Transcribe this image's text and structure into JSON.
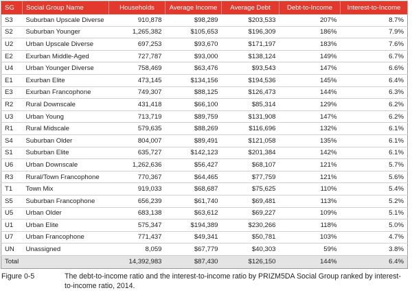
{
  "table": {
    "header": [
      "SG",
      "Social Group Name",
      "Households",
      "Average Income",
      "Average Debt",
      "Debt-to-Income",
      "Interest-to-Income"
    ],
    "rows": [
      [
        "S3",
        "Suburban Upscale Diverse",
        "910,878",
        "$98,289",
        "$203,533",
        "207%",
        "8.7%"
      ],
      [
        "S2",
        "Suburban Younger",
        "1,265,382",
        "$105,653",
        "$196,309",
        "186%",
        "7.9%"
      ],
      [
        "U2",
        "Urban Upscale Diverse",
        "697,253",
        "$93,670",
        "$171,197",
        "183%",
        "7.6%"
      ],
      [
        "E2",
        "Exurban Middle-Aged",
        "727,787",
        "$93,000",
        "$138,124",
        "149%",
        "6.7%"
      ],
      [
        "U4",
        "Urban Younger Diverse",
        "758,469",
        "$63,476",
        "$93,543",
        "147%",
        "6.6%"
      ],
      [
        "E1",
        "Exurban Elite",
        "473,145",
        "$134,156",
        "$194,536",
        "145%",
        "6.4%"
      ],
      [
        "E3",
        "Exurban Francophone",
        "749,307",
        "$88,125",
        "$126,473",
        "144%",
        "6.3%"
      ],
      [
        "R2",
        "Rural Downscale",
        "431,418",
        "$66,100",
        "$85,314",
        "129%",
        "6.2%"
      ],
      [
        "U3",
        "Urban Young",
        "713,719",
        "$89,759",
        "$131,908",
        "147%",
        "6.2%"
      ],
      [
        "R1",
        "Rural Midscale",
        "579,635",
        "$88,269",
        "$116,696",
        "132%",
        "6.1%"
      ],
      [
        "S4",
        "Suburban Older",
        "804,007",
        "$89,491",
        "$121,058",
        "135%",
        "6.1%"
      ],
      [
        "S1",
        "Suburban Elite",
        "635,727",
        "$142,123",
        "$201,384",
        "142%",
        "6.1%"
      ],
      [
        "U6",
        "Urban Downscale",
        "1,262,636",
        "$56,427",
        "$68,107",
        "121%",
        "5.7%"
      ],
      [
        "R3",
        "Rural/Town Francophone",
        "770,367",
        "$64,465",
        "$77,759",
        "121%",
        "5.6%"
      ],
      [
        "T1",
        "Town Mix",
        "919,033",
        "$68,687",
        "$75,625",
        "110%",
        "5.4%"
      ],
      [
        "S5",
        "Suburban Francophone",
        "656,239",
        "$61,740",
        "$69,481",
        "113%",
        "5.2%"
      ],
      [
        "U5",
        "Urban Older",
        "683,138",
        "$63,612",
        "$69,227",
        "109%",
        "5.1%"
      ],
      [
        "U1",
        "Urban Elite",
        "575,347",
        "$194,389",
        "$230,266",
        "118%",
        "5.0%"
      ],
      [
        "U7",
        "Urban Francophone",
        "771,437",
        "$49,341",
        "$50,781",
        "103%",
        "4.7%"
      ],
      [
        "UN",
        "Unassigned",
        "8,059",
        "$67,779",
        "$40,303",
        "59%",
        "3.8%"
      ]
    ],
    "total": {
      "label": "Total",
      "cells": [
        "14,392,983",
        "$87,430",
        "$126,150",
        "144%",
        "6.4%"
      ]
    }
  },
  "caption": {
    "label": "Figure 0-5",
    "text": "The debt-to-income ratio and the interest-to-income ratio by PRIZM5DA Social Group ranked by interest-to-income ratio, 2014."
  }
}
